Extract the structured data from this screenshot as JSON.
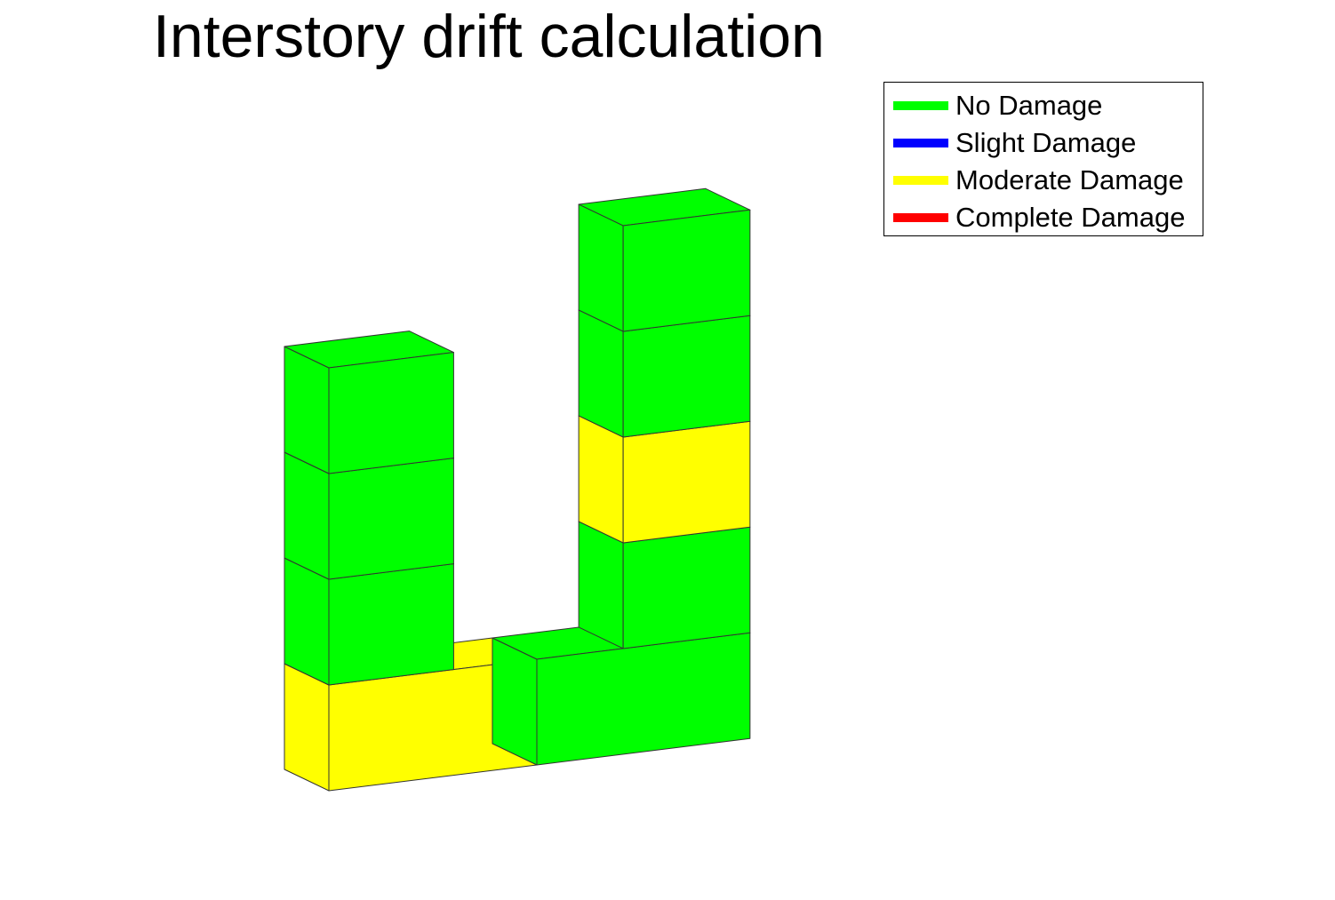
{
  "title": "Interstory drift calculation",
  "legend": [
    {
      "label": "No Damage",
      "color": "#00ff00"
    },
    {
      "label": "Slight Damage",
      "color": "#0000ff"
    },
    {
      "label": "Moderate Damage",
      "color": "#ffff00"
    },
    {
      "label": "Complete Damage",
      "color": "#ff0000"
    }
  ],
  "structure": {
    "bays": [
      {
        "name": "left-bay",
        "stories": [
          "Moderate Damage",
          "No Damage",
          "No Damage",
          "No Damage"
        ]
      },
      {
        "name": "right-bay",
        "stories": [
          "No Damage",
          "No Damage",
          "Moderate Damage",
          "No Damage",
          "No Damage"
        ]
      }
    ]
  }
}
